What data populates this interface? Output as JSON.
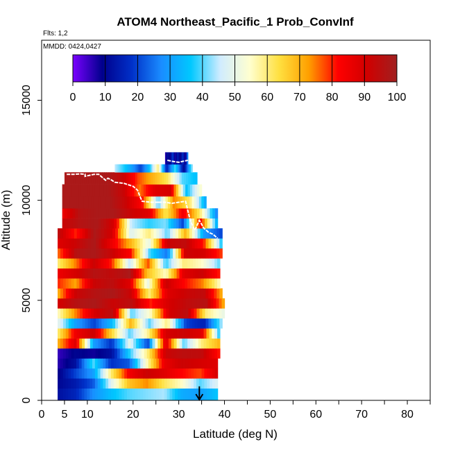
{
  "chart_data": {
    "type": "heatmap",
    "title": "ATOM4 Northeast_Pacific_1 Prob_ConvInf",
    "notes": {
      "flights": "Flts: 1,2",
      "dates": "MMDD: 0424,0427"
    },
    "xlabel": "Latitude (deg N)",
    "ylabel": "Altitude (m)",
    "xlim": [
      0,
      85
    ],
    "ylim": [
      0,
      18000
    ],
    "x_tick_labels": [
      "0",
      "5",
      "10",
      "20",
      "30",
      "40",
      "50",
      "60",
      "70",
      "80"
    ],
    "x_tick_values": [
      0,
      5,
      10,
      20,
      30,
      40,
      50,
      60,
      70,
      80
    ],
    "y_tick_labels": [
      "0",
      "5000",
      "10000",
      "15000"
    ],
    "y_tick_values": [
      0,
      5000,
      10000,
      15000
    ],
    "colorbar": {
      "min": 0,
      "max": 100,
      "tick_labels": [
        "0",
        "10",
        "20",
        "30",
        "40",
        "50",
        "60",
        "70",
        "80",
        "90",
        "100"
      ],
      "stops": [
        "#7a00ff",
        "#00008c",
        "#0030c8",
        "#1a8cff",
        "#00c8ff",
        "#d0ecff",
        "#ffffd0",
        "#ffe040",
        "#ffa000",
        "#ff0000",
        "#d00000",
        "#a02020"
      ]
    },
    "layers": [
      {
        "alt": [
          0,
          600
        ],
        "lat": [
          3.5,
          38.5
        ],
        "values": [
          12,
          16,
          28,
          35,
          40,
          42,
          44,
          32,
          30,
          36
        ]
      },
      {
        "alt": [
          600,
          1100
        ],
        "lat": [
          3.5,
          38.5
        ],
        "values": [
          10,
          14,
          22,
          48,
          68,
          74,
          62,
          55,
          40,
          48
        ]
      },
      {
        "alt": [
          1100,
          1600
        ],
        "lat": [
          3.5,
          38.5
        ],
        "values": [
          8,
          20,
          30,
          60,
          84,
          92,
          88,
          82,
          78,
          90
        ]
      },
      {
        "alt": [
          1600,
          2100
        ],
        "lat": [
          3.5,
          38.5
        ],
        "values": [
          6,
          12,
          40,
          18,
          22,
          55,
          86,
          92,
          90,
          88
        ]
      },
      {
        "alt": [
          2100,
          2600
        ],
        "lat": [
          3.5,
          39
        ],
        "values": [
          5,
          10,
          8,
          12,
          38,
          60,
          92,
          95,
          94,
          80
        ]
      },
      {
        "alt": [
          2600,
          3100
        ],
        "lat": [
          3.5,
          39
        ],
        "values": [
          70,
          88,
          30,
          18,
          50,
          20,
          90,
          40,
          60,
          70
        ]
      },
      {
        "alt": [
          3100,
          3600
        ],
        "lat": [
          3.5,
          39
        ],
        "values": [
          60,
          85,
          92,
          65,
          40,
          58,
          90,
          92,
          88,
          35
        ]
      },
      {
        "alt": [
          3600,
          4100
        ],
        "lat": [
          3.5,
          39.5
        ],
        "values": [
          50,
          30,
          20,
          35,
          70,
          40,
          60,
          20,
          15,
          45
        ]
      },
      {
        "alt": [
          4100,
          4600
        ],
        "lat": [
          3.5,
          40
        ],
        "values": [
          55,
          75,
          90,
          95,
          40,
          55,
          90,
          95,
          60,
          50
        ]
      },
      {
        "alt": [
          4600,
          5100
        ],
        "lat": [
          3.5,
          40
        ],
        "values": [
          90,
          96,
          98,
          92,
          95,
          80,
          90,
          94,
          96,
          70
        ]
      },
      {
        "alt": [
          5100,
          5600
        ],
        "lat": [
          3.5,
          39.5
        ],
        "values": [
          70,
          92,
          96,
          98,
          92,
          60,
          88,
          92,
          94,
          70
        ]
      },
      {
        "alt": [
          5600,
          6100
        ],
        "lat": [
          3.5,
          39
        ],
        "values": [
          80,
          72,
          92,
          95,
          88,
          50,
          92,
          82,
          75,
          55
        ]
      },
      {
        "alt": [
          6100,
          6600
        ],
        "lat": [
          3.5,
          39
        ],
        "values": [
          85,
          90,
          96,
          94,
          98,
          68,
          55,
          88,
          92,
          80
        ]
      },
      {
        "alt": [
          6600,
          7100
        ],
        "lat": [
          3.5,
          39
        ],
        "values": [
          60,
          75,
          92,
          80,
          45,
          78,
          38,
          60,
          55,
          40
        ]
      },
      {
        "alt": [
          7100,
          7600
        ],
        "lat": [
          3.5,
          39.5
        ],
        "values": [
          75,
          96,
          98,
          92,
          82,
          40,
          25,
          92,
          90,
          78
        ]
      },
      {
        "alt": [
          7600,
          8100
        ],
        "lat": [
          3.5,
          39.5
        ],
        "values": [
          88,
          92,
          98,
          85,
          70,
          50,
          92,
          94,
          80,
          35
        ]
      },
      {
        "alt": [
          8100,
          8600
        ],
        "lat": [
          3.5,
          39.5
        ],
        "values": [
          95,
          80,
          98,
          90,
          48,
          60,
          40,
          70,
          30,
          20
        ]
      },
      {
        "alt": [
          8600,
          9100
        ],
        "lat": [
          4.5,
          38.5
        ],
        "values": [
          92,
          96,
          98,
          90,
          45,
          38,
          42,
          20,
          85,
          30
        ]
      },
      {
        "alt": [
          9100,
          9600
        ],
        "lat": [
          4.5,
          38.5
        ],
        "values": [
          85,
          96,
          98,
          98,
          92,
          88,
          62,
          85,
          60,
          25
        ]
      },
      {
        "alt": [
          9600,
          10200
        ],
        "lat": [
          4.5,
          36
        ],
        "values": [
          98,
          98,
          98,
          98,
          92,
          82,
          40,
          75,
          60,
          30
        ]
      },
      {
        "alt": [
          10200,
          10800
        ],
        "lat": [
          4.5,
          35
        ],
        "values": [
          98,
          98,
          98,
          98,
          92,
          75,
          88,
          90,
          35,
          55
        ]
      },
      {
        "alt": [
          10800,
          11400
        ],
        "lat": [
          5,
          34
        ],
        "values": [
          98,
          98,
          98,
          98,
          92,
          78,
          70,
          62,
          40,
          35
        ]
      },
      {
        "alt": [
          11400,
          11800
        ],
        "lat": [
          16,
          33
        ],
        "values": [
          45,
          38,
          30,
          20,
          35,
          60,
          15,
          40,
          10,
          45
        ]
      },
      {
        "alt": [
          11800,
          12400
        ],
        "lat": [
          27,
          32
        ],
        "values": [
          5,
          12,
          8,
          20,
          6,
          15,
          8,
          18,
          6,
          30
        ]
      }
    ],
    "flight_tracks": [
      {
        "lat": [
          5.5,
          6,
          7,
          8.5,
          9.5,
          9.5,
          10.5,
          11.5,
          12.5,
          13,
          14,
          14.5,
          15,
          15.5,
          16
        ],
        "alt": [
          11300,
          11300,
          11300,
          11320,
          11300,
          11200,
          11250,
          11300,
          11300,
          11200,
          11000,
          11100,
          11050,
          10980,
          10900
        ]
      },
      {
        "lat": [
          16,
          18,
          20,
          21,
          21.5,
          22,
          24,
          25.5
        ],
        "alt": [
          10900,
          10850,
          10700,
          10500,
          10200,
          9950,
          9900,
          9900
        ]
      },
      {
        "lat": [
          25.5,
          27,
          28.5,
          30,
          31.5,
          32.5,
          33.5,
          34.5,
          35.5,
          36.5,
          37.5,
          38.5
        ],
        "alt": [
          9900,
          9900,
          9850,
          9900,
          9950,
          9000,
          8500,
          9000,
          8600,
          8400,
          8300,
          8100
        ]
      },
      {
        "lat": [
          27.5,
          28.5,
          30,
          31,
          32
        ],
        "alt": [
          12000,
          11950,
          11900,
          11950,
          12000
        ]
      }
    ],
    "arrow": {
      "lat": 34.5,
      "alt_from": 700,
      "alt_to": 0,
      "direction": "down"
    }
  }
}
